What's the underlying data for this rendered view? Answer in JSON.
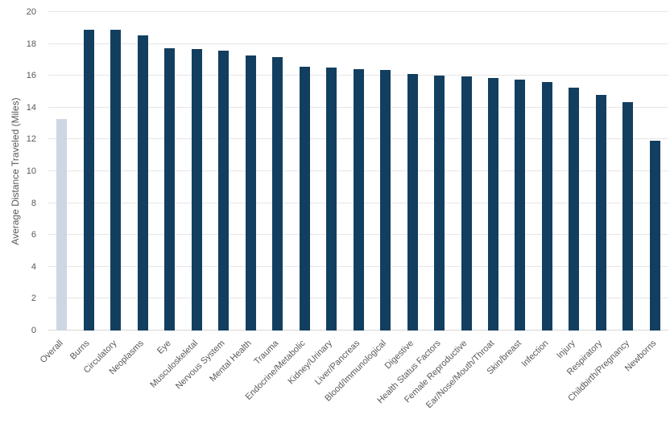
{
  "chart_data": {
    "type": "bar",
    "title": "",
    "ylabel": "Average Distance Traveled (Miles)",
    "xlabel": "",
    "ylim": [
      0,
      20
    ],
    "yticks": [
      0,
      2,
      4,
      6,
      8,
      10,
      12,
      14,
      16,
      18,
      20
    ],
    "grid": true,
    "legend": "none",
    "categories": [
      "Overall",
      "Burns",
      "Circulatory",
      "Neoplasms",
      "Eye",
      "Musculoskeletal",
      "Nervous System",
      "Mental Health",
      "Trauma",
      "Endocrine/Metabolic",
      "Kidney/Urinary",
      "Liver/Pancreas",
      "Blood/Immunological",
      "Digestive",
      "Health Status Factors",
      "Female Reproductive",
      "Ear/Nose/Mouth/Throat",
      "Skin/breast",
      "Infection",
      "Injury",
      "Respiratory",
      "Childbirth/Pregnancy",
      "Newborns"
    ],
    "values": [
      13.3,
      18.9,
      18.9,
      18.55,
      17.75,
      17.7,
      17.6,
      17.25,
      17.15,
      16.55,
      16.5,
      16.4,
      16.35,
      16.1,
      16.0,
      15.95,
      15.85,
      15.75,
      15.6,
      15.25,
      14.8,
      14.35,
      11.9
    ],
    "highlight_index": 0,
    "colors": {
      "bar": "#123f5f",
      "highlight_bar": "#cdd6e3",
      "gridline": "#e6e6e6",
      "axis_line": "#d6d6d6",
      "text": "#595959",
      "background": "#ffffff"
    }
  }
}
